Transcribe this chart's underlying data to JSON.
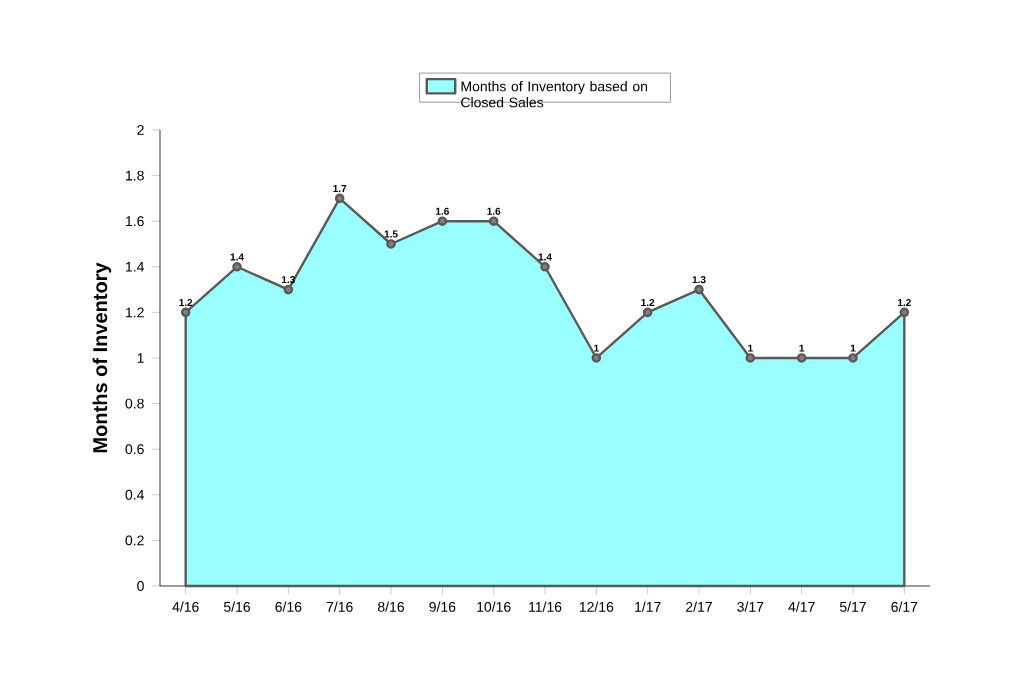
{
  "chart_data": {
    "type": "area",
    "ylabel": "Months of Inventory",
    "categories": [
      "4/16",
      "5/16",
      "6/16",
      "7/16",
      "8/16",
      "9/16",
      "10/16",
      "11/16",
      "12/16",
      "1/17",
      "2/17",
      "3/17",
      "4/17",
      "5/17",
      "6/17"
    ],
    "series": [
      {
        "name": "Months of Inventory based on Closed Sales",
        "color": "#99ffff",
        "values": [
          1.2,
          1.4,
          1.3,
          1.7,
          1.5,
          1.6,
          1.6,
          1.4,
          1,
          1.2,
          1.3,
          1,
          1,
          1,
          1.2
        ]
      }
    ],
    "ylim": [
      0,
      2
    ],
    "yticks": [
      0,
      0.2,
      0.4,
      0.6,
      0.8,
      1,
      1.2,
      1.4,
      1.6,
      1.8,
      2
    ],
    "data_labels": true,
    "legend": "top",
    "marker": "circle",
    "line_style": "solid",
    "grid": false
  }
}
